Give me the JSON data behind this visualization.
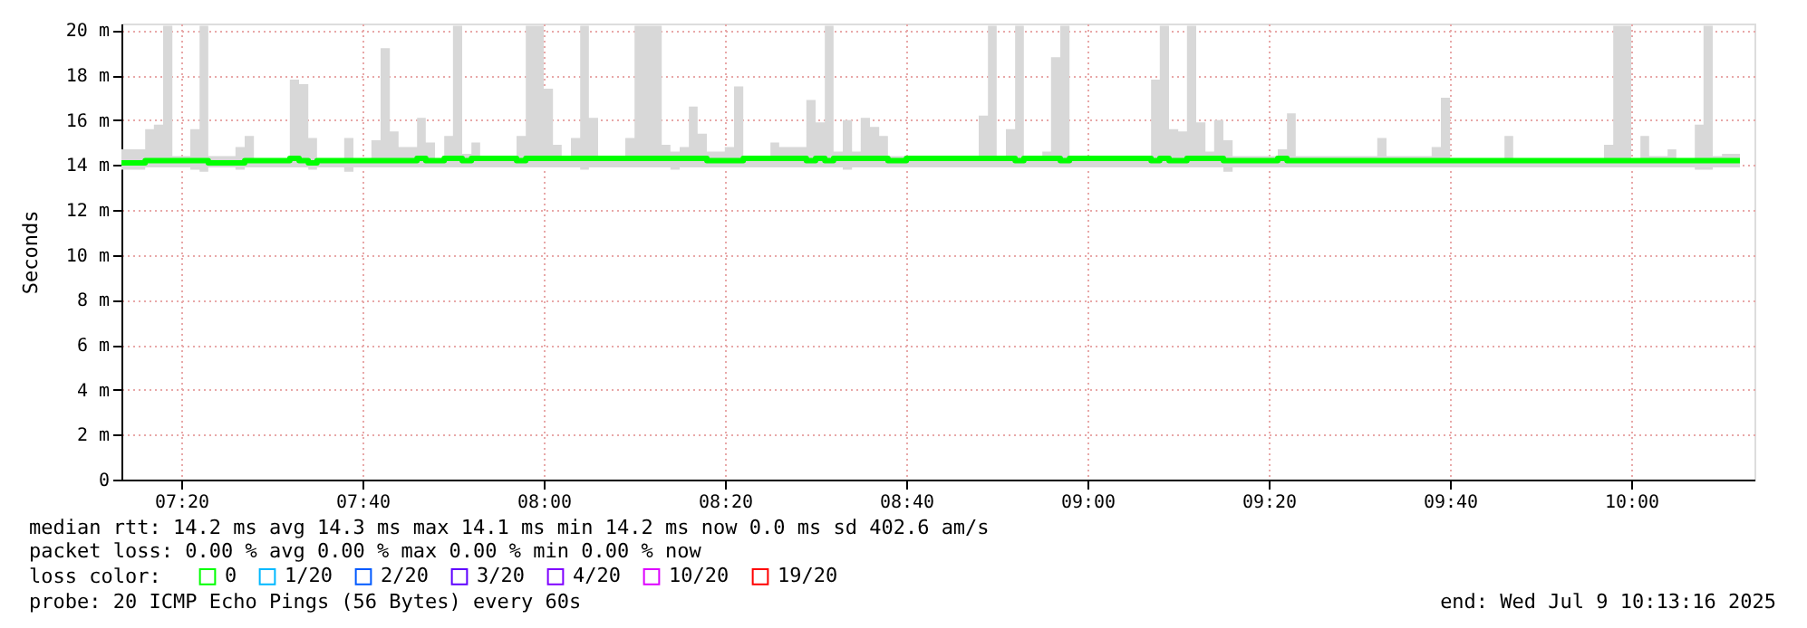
{
  "chart_data": {
    "type": "step",
    "ylabel": "Seconds",
    "xlim": [
      7.2233,
      10.2267
    ],
    "xticks": [
      {
        "value": 7.3333,
        "label": "07:20"
      },
      {
        "value": 7.6667,
        "label": "07:40"
      },
      {
        "value": 8,
        "label": "08:00"
      },
      {
        "value": 8.3333,
        "label": "08:20"
      },
      {
        "value": 8.6667,
        "label": "08:40"
      },
      {
        "value": 9,
        "label": "09:00"
      },
      {
        "value": 9.3333,
        "label": "09:20"
      },
      {
        "value": 9.6667,
        "label": "09:40"
      },
      {
        "value": 10,
        "label": "10:00"
      }
    ],
    "ylim": [
      0,
      20.3
    ],
    "yticks": [
      0,
      {
        "value": 2,
        "label": "2 m"
      },
      {
        "value": 4,
        "label": "4 m"
      },
      {
        "value": 6,
        "label": "6 m"
      },
      {
        "value": 8,
        "label": "8 m"
      },
      {
        "value": 10,
        "label": "10 m"
      },
      {
        "value": 12,
        "label": "12 m"
      },
      {
        "value": 14,
        "label": "14 m"
      },
      {
        "value": 16,
        "label": "16 m"
      },
      {
        "value": 18,
        "label": "18 m"
      },
      {
        "value": 20,
        "label": "20 m"
      }
    ],
    "grid": true,
    "marker": "none",
    "line_style": "solid",
    "legend": "bottom",
    "legend_title": "loss color:",
    "x": [
      7.2233,
      7.267,
      7.283,
      7.3,
      7.317,
      7.35,
      7.367,
      7.383,
      7.433,
      7.45,
      7.467,
      7.533,
      7.55,
      7.567,
      7.583,
      7.633,
      7.65,
      7.683,
      7.7,
      7.717,
      7.733,
      7.767,
      7.783,
      7.8,
      7.817,
      7.833,
      7.85,
      7.867,
      7.883,
      7.95,
      7.967,
      8.0,
      8.017,
      8.033,
      8.05,
      8.067,
      8.083,
      8.1,
      8.15,
      8.167,
      8.217,
      8.233,
      8.25,
      8.267,
      8.283,
      8.3,
      8.333,
      8.35,
      8.367,
      8.417,
      8.433,
      8.483,
      8.5,
      8.517,
      8.533,
      8.55,
      8.567,
      8.583,
      8.6,
      8.617,
      8.633,
      8.667,
      8.8,
      8.817,
      8.833,
      8.85,
      8.867,
      8.883,
      8.917,
      8.933,
      8.95,
      8.967,
      9.117,
      9.133,
      9.15,
      9.167,
      9.183,
      9.2,
      9.217,
      9.233,
      9.25,
      9.267,
      9.35,
      9.367,
      9.383,
      9.533,
      9.55,
      9.633,
      9.65,
      9.667,
      9.767,
      9.783,
      9.95,
      9.967,
      10.0,
      10.017,
      10.033,
      10.067,
      10.083,
      10.117,
      10.133,
      10.15,
      10.167,
      10.2
    ],
    "series": [
      {
        "name": "0",
        "color": "#00ff00",
        "values": [
          14.1,
          14.2,
          14.2,
          14.2,
          14.2,
          14.2,
          14.2,
          14.1,
          14.1,
          14.2,
          14.2,
          14.3,
          14.2,
          14.1,
          14.2,
          14.2,
          14.2,
          14.2,
          14.2,
          14.2,
          14.2,
          14.3,
          14.2,
          14.2,
          14.3,
          14.3,
          14.2,
          14.3,
          14.3,
          14.2,
          14.3,
          14.3,
          14.3,
          14.3,
          14.3,
          14.3,
          14.3,
          14.3,
          14.3,
          14.3,
          14.3,
          14.3,
          14.3,
          14.3,
          14.3,
          14.2,
          14.2,
          14.2,
          14.3,
          14.3,
          14.3,
          14.2,
          14.3,
          14.2,
          14.3,
          14.3,
          14.3,
          14.3,
          14.3,
          14.3,
          14.2,
          14.3,
          14.3,
          14.3,
          14.3,
          14.3,
          14.2,
          14.3,
          14.3,
          14.3,
          14.2,
          14.3,
          14.2,
          14.3,
          14.2,
          14.2,
          14.3,
          14.3,
          14.3,
          14.3,
          14.2,
          14.2,
          14.3,
          14.2,
          14.2,
          14.2,
          14.2,
          14.2,
          14.2,
          14.2,
          14.2,
          14.2,
          14.2,
          14.2,
          14.2,
          14.2,
          14.2,
          14.2,
          14.2,
          14.2,
          14.2,
          14.2,
          14.2,
          14.2
        ],
        "lower": [
          13.8,
          13.9,
          13.9,
          13.9,
          13.9,
          13.8,
          13.7,
          13.9,
          13.8,
          13.9,
          13.9,
          13.9,
          13.9,
          13.8,
          13.9,
          13.7,
          13.9,
          13.9,
          13.9,
          13.9,
          13.9,
          13.9,
          13.9,
          13.9,
          13.9,
          13.9,
          13.9,
          13.9,
          13.9,
          13.9,
          13.9,
          13.9,
          13.9,
          13.9,
          13.9,
          13.8,
          13.9,
          13.9,
          13.9,
          13.9,
          13.9,
          13.8,
          13.9,
          13.9,
          13.9,
          13.9,
          13.9,
          13.9,
          13.9,
          13.9,
          13.9,
          13.9,
          13.9,
          13.9,
          13.9,
          13.8,
          13.9,
          13.9,
          13.9,
          13.9,
          13.9,
          13.9,
          13.9,
          13.9,
          13.9,
          13.9,
          13.9,
          13.9,
          13.9,
          13.9,
          13.9,
          13.9,
          13.9,
          13.9,
          13.9,
          13.9,
          13.9,
          13.9,
          13.9,
          13.9,
          13.7,
          13.9,
          13.9,
          13.9,
          13.9,
          13.9,
          13.9,
          13.9,
          13.9,
          13.9,
          13.9,
          13.9,
          13.9,
          13.9,
          13.9,
          13.9,
          13.9,
          13.9,
          13.9,
          13.8,
          13.8,
          13.9,
          13.9,
          13.9
        ],
        "upper": [
          14.7,
          15.6,
          15.8,
          20.2,
          14.4,
          15.6,
          20.2,
          14.4,
          14.8,
          15.3,
          14.3,
          17.8,
          17.6,
          15.2,
          14.3,
          15.2,
          14.3,
          15.1,
          19.2,
          15.5,
          14.8,
          16.1,
          15.0,
          14.3,
          15.3,
          20.2,
          14.5,
          15.0,
          14.4,
          15.3,
          20.2,
          17.4,
          14.9,
          14.3,
          15.2,
          20.2,
          16.1,
          14.4,
          15.2,
          20.2,
          14.9,
          14.6,
          14.8,
          16.6,
          15.4,
          14.6,
          14.8,
          17.5,
          14.4,
          15.0,
          14.8,
          16.9,
          15.9,
          20.2,
          14.6,
          16.0,
          14.6,
          16.1,
          15.7,
          15.3,
          14.4,
          14.3,
          16.2,
          20.2,
          14.4,
          15.6,
          20.2,
          14.4,
          14.6,
          18.8,
          20.2,
          14.4,
          17.8,
          20.2,
          15.6,
          15.5,
          20.2,
          15.9,
          14.6,
          16.0,
          15.1,
          14.4,
          14.7,
          16.3,
          14.4,
          15.2,
          14.4,
          14.8,
          17.0,
          14.3,
          15.3,
          14.3,
          14.9,
          20.2,
          14.3,
          15.3,
          14.4,
          14.7,
          14.3,
          15.8,
          20.2,
          14.4,
          14.5,
          14.5
        ]
      },
      {
        "name": "1/20",
        "color": "#00b8ff",
        "values": [
          null,
          null,
          null,
          null,
          null,
          null,
          null,
          null,
          null,
          null,
          null,
          null,
          null,
          null,
          null,
          null,
          null,
          null,
          null,
          null,
          null,
          null,
          null,
          null,
          null,
          null,
          null,
          null,
          null,
          null,
          null,
          null,
          null,
          null,
          null,
          null,
          null,
          null,
          null,
          null,
          null,
          null,
          null,
          null,
          null,
          null,
          null,
          null,
          null,
          null,
          null,
          null,
          null,
          null,
          null,
          null,
          null,
          null,
          null,
          null,
          null,
          null,
          null,
          null,
          null,
          null,
          null,
          null,
          null,
          null,
          null,
          null,
          null,
          null,
          null,
          null,
          null,
          null,
          null,
          null,
          null,
          null,
          null,
          null,
          null,
          null,
          null,
          null,
          null,
          null,
          null,
          null,
          null,
          null,
          null,
          null,
          null,
          null,
          null,
          null,
          null,
          null,
          null,
          null
        ]
      },
      {
        "name": "2/20",
        "color": "#0059ff",
        "values": [
          null,
          null,
          null,
          null,
          null,
          null,
          null,
          null,
          null,
          null,
          null,
          null,
          null,
          null,
          null,
          null,
          null,
          null,
          null,
          null,
          null,
          null,
          null,
          null,
          null,
          null,
          null,
          null,
          null,
          null,
          null,
          null,
          null,
          null,
          null,
          null,
          null,
          null,
          null,
          null,
          null,
          null,
          null,
          null,
          null,
          null,
          null,
          null,
          null,
          null,
          null,
          null,
          null,
          null,
          null,
          null,
          null,
          null,
          null,
          null,
          null,
          null,
          null,
          null,
          null,
          null,
          null,
          null,
          null,
          null,
          null,
          null,
          null,
          null,
          null,
          null,
          null,
          null,
          null,
          null,
          null,
          null,
          null,
          null,
          null,
          null,
          null,
          null,
          null,
          null,
          null,
          null,
          null,
          null,
          null,
          null,
          null,
          null,
          null,
          null,
          null,
          null,
          null,
          null
        ]
      },
      {
        "name": "3/20",
        "color": "#5e00ff",
        "values": [
          null,
          null,
          null,
          null,
          null,
          null,
          null,
          null,
          null,
          null,
          null,
          null,
          null,
          null,
          null,
          null,
          null,
          null,
          null,
          null,
          null,
          null,
          null,
          null,
          null,
          null,
          null,
          null,
          null,
          null,
          null,
          null,
          null,
          null,
          null,
          null,
          null,
          null,
          null,
          null,
          null,
          null,
          null,
          null,
          null,
          null,
          null,
          null,
          null,
          null,
          null,
          null,
          null,
          null,
          null,
          null,
          null,
          null,
          null,
          null,
          null,
          null,
          null,
          null,
          null,
          null,
          null,
          null,
          null,
          null,
          null,
          null,
          null,
          null,
          null,
          null,
          null,
          null,
          null,
          null,
          null,
          null,
          null,
          null,
          null,
          null,
          null,
          null,
          null,
          null,
          null,
          null,
          null,
          null,
          null,
          null,
          null,
          null,
          null,
          null,
          null,
          null,
          null,
          null
        ]
      },
      {
        "name": "4/20",
        "color": "#7e00ff",
        "values": [
          null,
          null,
          null,
          null,
          null,
          null,
          null,
          null,
          null,
          null,
          null,
          null,
          null,
          null,
          null,
          null,
          null,
          null,
          null,
          null,
          null,
          null,
          null,
          null,
          null,
          null,
          null,
          null,
          null,
          null,
          null,
          null,
          null,
          null,
          null,
          null,
          null,
          null,
          null,
          null,
          null,
          null,
          null,
          null,
          null,
          null,
          null,
          null,
          null,
          null,
          null,
          null,
          null,
          null,
          null,
          null,
          null,
          null,
          null,
          null,
          null,
          null,
          null,
          null,
          null,
          null,
          null,
          null,
          null,
          null,
          null,
          null,
          null,
          null,
          null,
          null,
          null,
          null,
          null,
          null,
          null,
          null,
          null,
          null,
          null,
          null,
          null,
          null,
          null,
          null,
          null,
          null,
          null,
          null,
          null,
          null,
          null,
          null,
          null,
          null,
          null,
          null,
          null,
          null
        ]
      },
      {
        "name": "10/20",
        "color": "#dd00ff",
        "values": [
          null,
          null,
          null,
          null,
          null,
          null,
          null,
          null,
          null,
          null,
          null,
          null,
          null,
          null,
          null,
          null,
          null,
          null,
          null,
          null,
          null,
          null,
          null,
          null,
          null,
          null,
          null,
          null,
          null,
          null,
          null,
          null,
          null,
          null,
          null,
          null,
          null,
          null,
          null,
          null,
          null,
          null,
          null,
          null,
          null,
          null,
          null,
          null,
          null,
          null,
          null,
          null,
          null,
          null,
          null,
          null,
          null,
          null,
          null,
          null,
          null,
          null,
          null,
          null,
          null,
          null,
          null,
          null,
          null,
          null,
          null,
          null,
          null,
          null,
          null,
          null,
          null,
          null,
          null,
          null,
          null,
          null,
          null,
          null,
          null,
          null,
          null,
          null,
          null,
          null,
          null,
          null,
          null,
          null,
          null,
          null,
          null,
          null,
          null,
          null,
          null,
          null,
          null,
          null
        ]
      },
      {
        "name": "19/20",
        "color": "#ff0000",
        "values": [
          null,
          null,
          null,
          null,
          null,
          null,
          null,
          null,
          null,
          null,
          null,
          null,
          null,
          null,
          null,
          null,
          null,
          null,
          null,
          null,
          null,
          null,
          null,
          null,
          null,
          null,
          null,
          null,
          null,
          null,
          null,
          null,
          null,
          null,
          null,
          null,
          null,
          null,
          null,
          null,
          null,
          null,
          null,
          null,
          null,
          null,
          null,
          null,
          null,
          null,
          null,
          null,
          null,
          null,
          null,
          null,
          null,
          null,
          null,
          null,
          null,
          null,
          null,
          null,
          null,
          null,
          null,
          null,
          null,
          null,
          null,
          null,
          null,
          null,
          null,
          null,
          null,
          null,
          null,
          null,
          null,
          null,
          null,
          null,
          null,
          null,
          null,
          null,
          null,
          null,
          null,
          null,
          null,
          null,
          null,
          null,
          null,
          null,
          null,
          null,
          null,
          null,
          null,
          null
        ]
      }
    ],
    "annotations": [
      "median rtt:  14.2 ms avg  14.3 ms max  14.1 ms min  14.2 ms now  0.0 ms sd  402.6   am/s",
      "packet loss: 0.00 % avg  0.00 % max  0.00 % min  0.00 % now",
      "probe:       20 ICMP Echo Pings (56 Bytes) every 60s",
      "end: Wed Jul  9 10:13:16 2025"
    ]
  }
}
